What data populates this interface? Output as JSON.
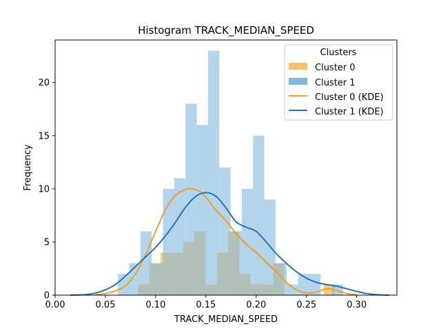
{
  "chart_data": {
    "type": "bar",
    "title": "Histogram TRACK_MEDIAN_SPEED",
    "xlabel": "TRACK_MEDIAN_SPEED",
    "ylabel": "Frequency",
    "xlim": [
      0.0,
      0.34
    ],
    "ylim": [
      0,
      24
    ],
    "x_ticks": [
      "0.00",
      "0.05",
      "0.10",
      "0.15",
      "0.20",
      "0.25",
      "0.30"
    ],
    "y_ticks": [
      "0",
      "5",
      "10",
      "15",
      "20"
    ],
    "grid": false,
    "legend": {
      "title": "Clusters",
      "placement": "top-right",
      "entries": [
        "Cluster 0",
        "Cluster 1",
        "Cluster 0 (KDE)",
        "Cluster 1 (KDE)"
      ]
    },
    "bin_width": 0.0112,
    "series": [
      {
        "name": "Cluster 0",
        "kind": "histogram",
        "color": "#fbc26b",
        "bins": [
          {
            "x0": 0.0825,
            "count": 1
          },
          {
            "x0": 0.0937,
            "count": 3
          },
          {
            "x0": 0.1049,
            "count": 4
          },
          {
            "x0": 0.1161,
            "count": 4
          },
          {
            "x0": 0.1273,
            "count": 5
          },
          {
            "x0": 0.1385,
            "count": 6
          },
          {
            "x0": 0.1497,
            "count": 1
          },
          {
            "x0": 0.1609,
            "count": 4
          },
          {
            "x0": 0.1721,
            "count": 6
          },
          {
            "x0": 0.1833,
            "count": 2
          },
          {
            "x0": 0.1945,
            "count": 1
          },
          {
            "x0": 0.2057,
            "count": 1
          },
          {
            "x0": 0.2169,
            "count": 3
          },
          {
            "x0": 0.2673,
            "count": 1
          }
        ]
      },
      {
        "name": "Cluster 1",
        "kind": "histogram",
        "color": "#7fb9e0",
        "bins": [
          {
            "x0": 0.0625,
            "count": 2
          },
          {
            "x0": 0.0737,
            "count": 3
          },
          {
            "x0": 0.0849,
            "count": 6
          },
          {
            "x0": 0.0961,
            "count": 3
          },
          {
            "x0": 0.1073,
            "count": 10
          },
          {
            "x0": 0.1185,
            "count": 11
          },
          {
            "x0": 0.1297,
            "count": 18
          },
          {
            "x0": 0.1409,
            "count": 16
          },
          {
            "x0": 0.1521,
            "count": 23
          },
          {
            "x0": 0.1633,
            "count": 12
          },
          {
            "x0": 0.1745,
            "count": 6
          },
          {
            "x0": 0.1857,
            "count": 10
          },
          {
            "x0": 0.1969,
            "count": 15
          },
          {
            "x0": 0.2081,
            "count": 9
          },
          {
            "x0": 0.2193,
            "count": 3
          },
          {
            "x0": 0.2305,
            "count": 1
          },
          {
            "x0": 0.2417,
            "count": 2
          },
          {
            "x0": 0.2529,
            "count": 2
          },
          {
            "x0": 0.2753,
            "count": 1
          }
        ]
      },
      {
        "name": "Cluster 0 (KDE)",
        "kind": "kde",
        "color": "#f3a01c",
        "x": [
          0.04,
          0.05,
          0.06,
          0.07,
          0.08,
          0.09,
          0.1,
          0.11,
          0.12,
          0.13,
          0.136,
          0.145,
          0.15,
          0.16,
          0.17,
          0.18,
          0.19,
          0.2,
          0.21,
          0.22,
          0.23,
          0.24,
          0.25,
          0.26,
          0.27,
          0.28,
          0.29,
          0.3
        ],
        "y": [
          0.05,
          0.15,
          0.4,
          0.9,
          2.0,
          3.8,
          6.0,
          8.1,
          9.4,
          9.95,
          10.0,
          9.7,
          9.2,
          8.0,
          7.0,
          5.8,
          4.8,
          4.0,
          3.1,
          2.2,
          1.2,
          0.5,
          0.2,
          0.3,
          0.6,
          0.45,
          0.15,
          0.05
        ]
      },
      {
        "name": "Cluster 1 (KDE)",
        "kind": "kde",
        "color": "#1f77b4",
        "x": [
          0.015,
          0.03,
          0.04,
          0.05,
          0.06,
          0.07,
          0.08,
          0.09,
          0.1,
          0.11,
          0.12,
          0.13,
          0.14,
          0.15,
          0.16,
          0.17,
          0.18,
          0.19,
          0.2,
          0.21,
          0.22,
          0.23,
          0.24,
          0.25,
          0.26,
          0.27,
          0.28,
          0.29,
          0.3,
          0.31,
          0.32,
          0.332
        ],
        "y": [
          0.0,
          0.05,
          0.2,
          0.5,
          1.0,
          1.8,
          2.7,
          3.6,
          4.5,
          5.6,
          6.9,
          8.3,
          9.3,
          9.65,
          9.3,
          8.2,
          6.9,
          6.4,
          6.0,
          5.0,
          3.9,
          3.0,
          2.2,
          1.6,
          1.2,
          1.0,
          0.85,
          0.6,
          0.35,
          0.15,
          0.05,
          0.0
        ]
      }
    ]
  }
}
